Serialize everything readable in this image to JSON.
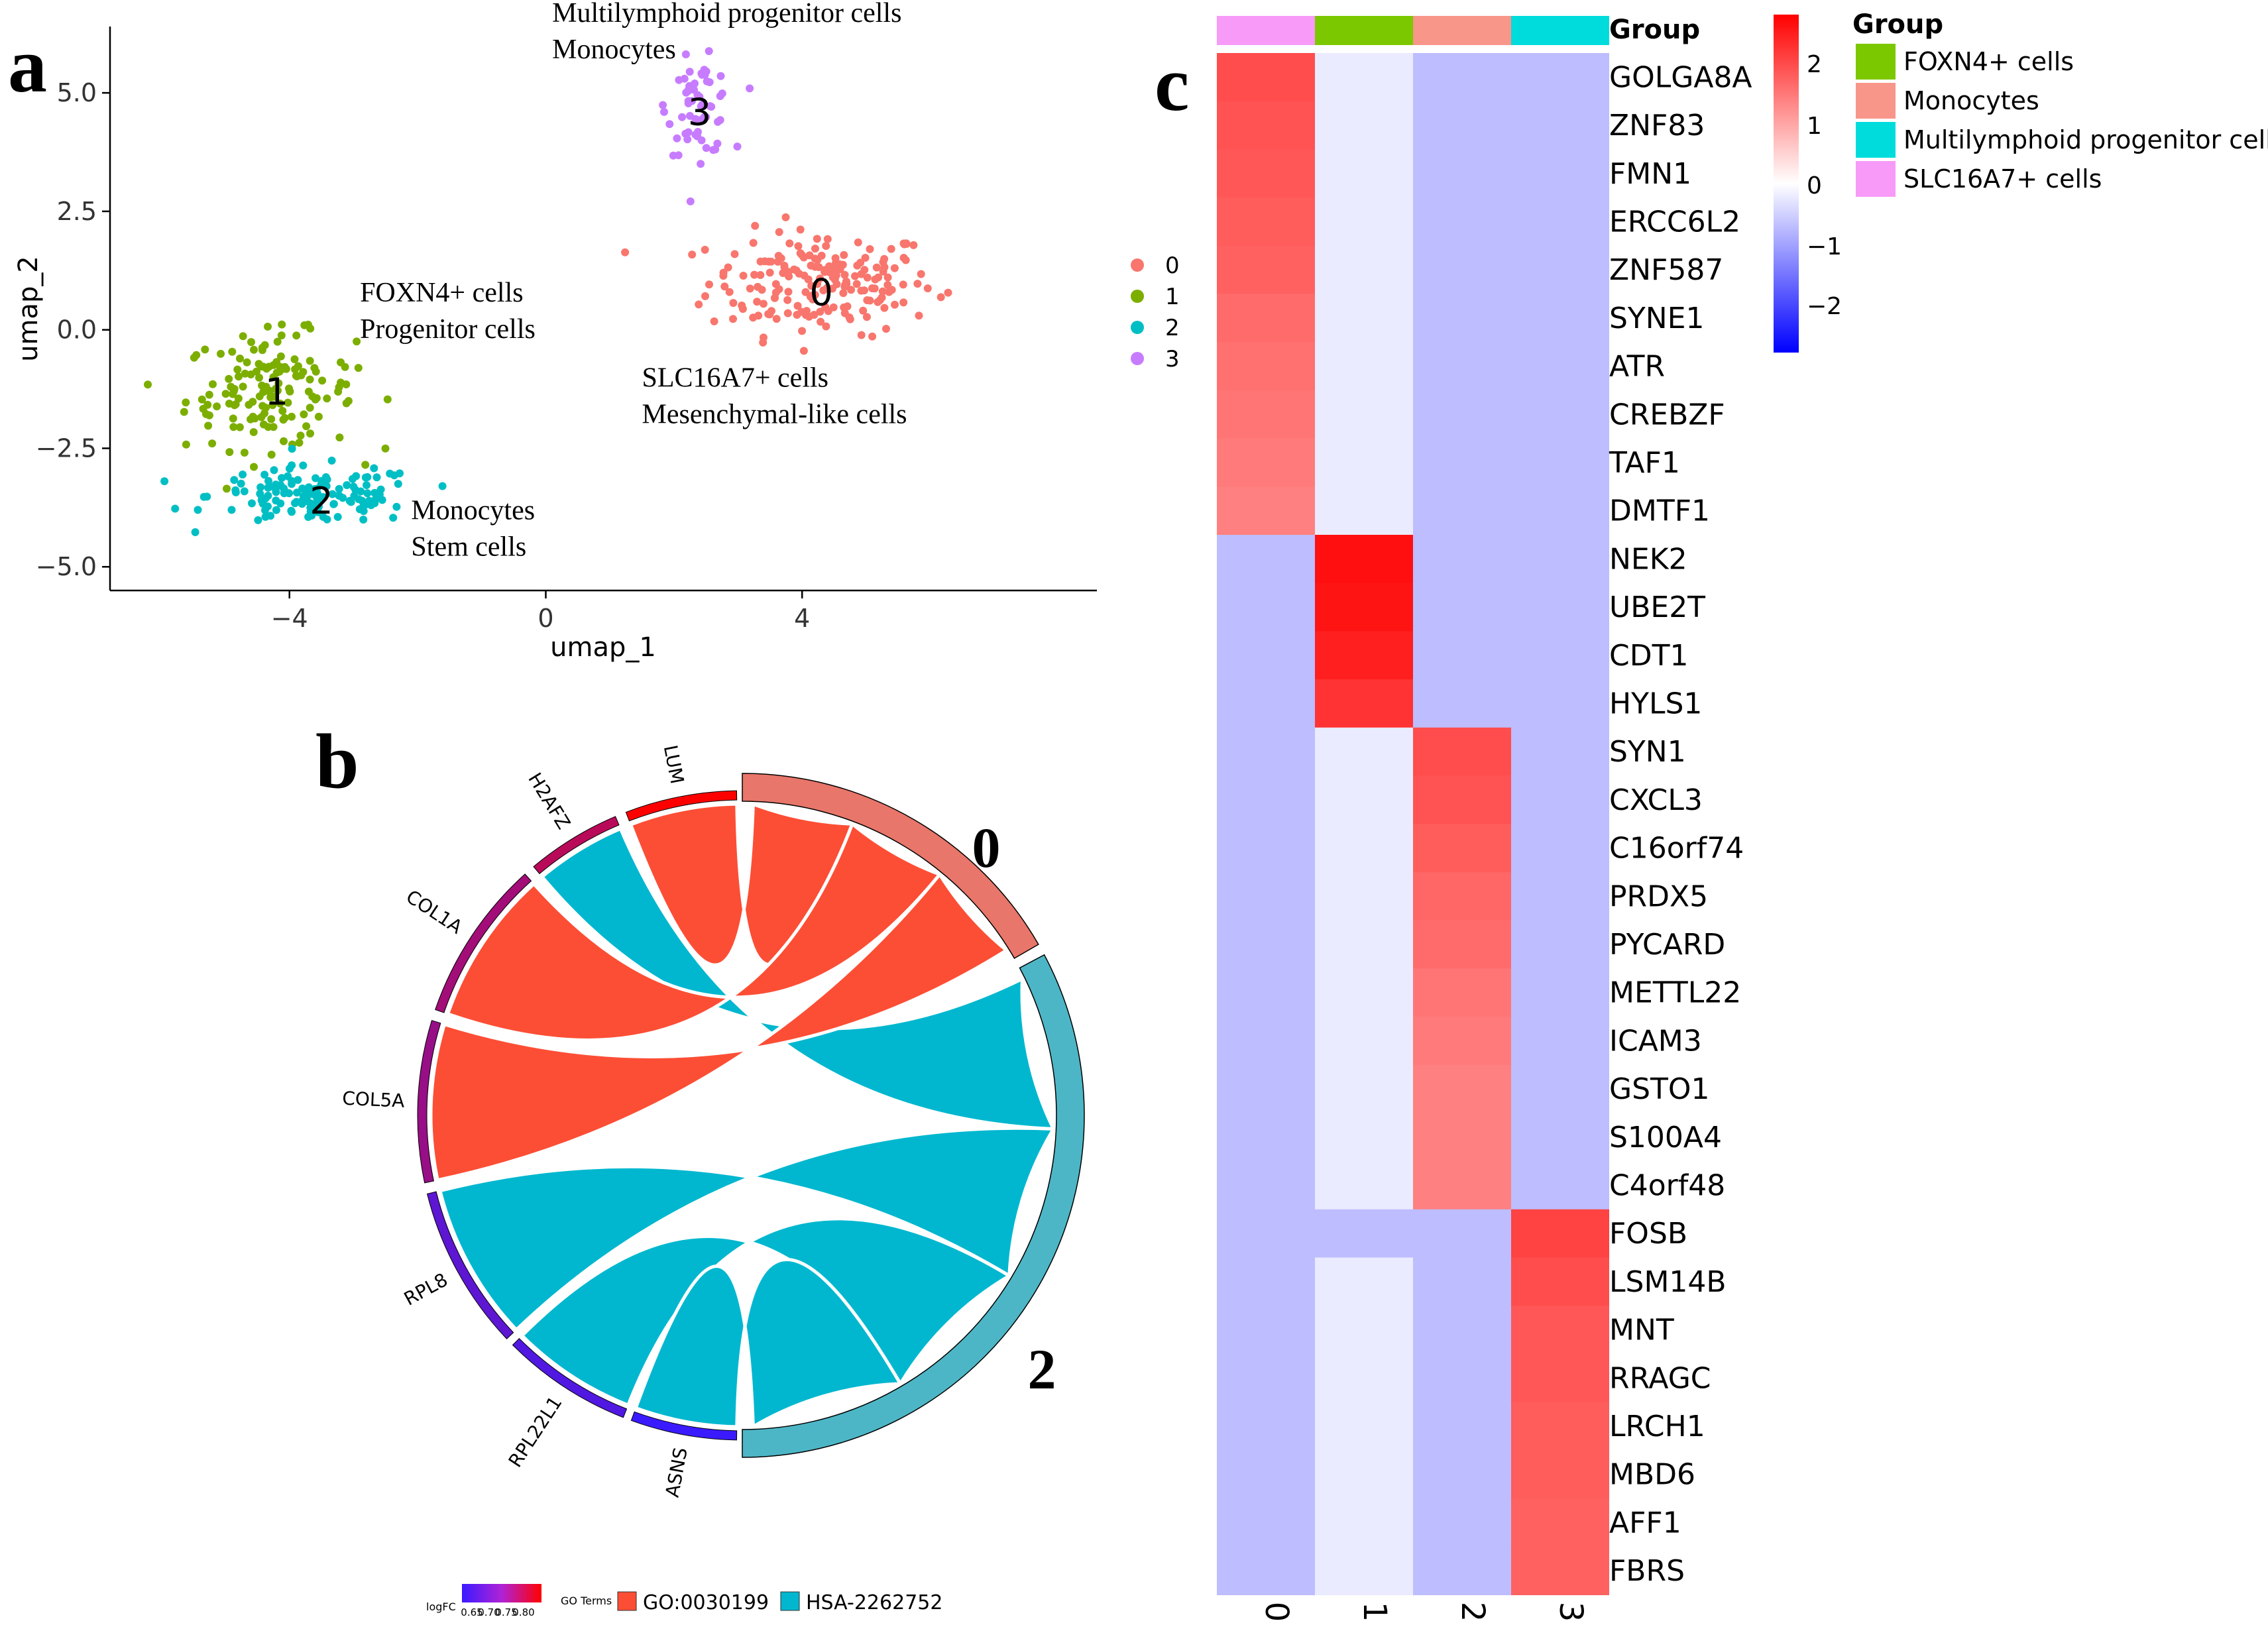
{
  "panel_labels": {
    "a": "a",
    "b": "b",
    "c": "c"
  },
  "chart_data": [
    {
      "type": "scatter",
      "panel": "a",
      "xlabel": "umap_1",
      "ylabel": "umap_2",
      "xlim": [
        -6.8,
        8.6
      ],
      "ylim": [
        -5.5,
        6.4
      ],
      "xticks": [
        -4,
        0,
        4
      ],
      "yticks": [
        -5.0,
        -2.5,
        0.0,
        2.5,
        5.0
      ],
      "legend": {
        "labels": [
          "0",
          "1",
          "2",
          "3"
        ],
        "colors": [
          "#F8766D",
          "#7CAE00",
          "#00BFC4",
          "#C77CFF"
        ],
        "position": "right"
      },
      "clusters": [
        {
          "id": "0",
          "color": "#F8766D",
          "center": [
            4.3,
            1.0
          ],
          "spread": [
            1.6,
            1.0
          ],
          "n": 190
        },
        {
          "id": "1",
          "color": "#7CAE00",
          "center": [
            -4.3,
            -1.3
          ],
          "spread": [
            1.2,
            1.1
          ],
          "n": 150
        },
        {
          "id": "2",
          "color": "#00BFC4",
          "center": [
            -3.6,
            -3.5
          ],
          "spread": [
            1.5,
            0.55
          ],
          "n": 140
        },
        {
          "id": "3",
          "color": "#C77CFF",
          "center": [
            2.4,
            4.7
          ],
          "spread": [
            0.45,
            0.9
          ],
          "n": 60
        }
      ],
      "cluster_labels": [
        {
          "text": "0",
          "x": 4.3,
          "y": 0.8
        },
        {
          "text": "1",
          "x": -4.2,
          "y": -1.3
        },
        {
          "text": "2",
          "x": -3.5,
          "y": -3.6
        },
        {
          "text": "3",
          "x": 2.4,
          "y": 4.6
        }
      ],
      "annotations": [
        {
          "lines": [
            "Multilymphoid progenitor cells",
            "Monocytes"
          ],
          "x": 0.1,
          "y": 6.5
        },
        {
          "lines": [
            "FOXN4+ cells",
            "Progenitor cells"
          ],
          "x": -2.9,
          "y": 0.6
        },
        {
          "lines": [
            "SLC16A7+ cells",
            "Mesenchymal-like cells"
          ],
          "x": 1.5,
          "y": -1.2
        },
        {
          "lines": [
            "Monocytes",
            "Stem cells"
          ],
          "x": -2.1,
          "y": -4.0
        }
      ]
    },
    {
      "type": "chord",
      "panel": "b",
      "genes": [
        "LUM",
        "H2AFZ",
        "COL1A",
        "COL5A",
        "RPL8",
        "RPL22L1",
        "ASNS"
      ],
      "gene_logfc": [
        0.8,
        0.74,
        0.72,
        0.71,
        0.66,
        0.65,
        0.63
      ],
      "groups": [
        {
          "label": "0",
          "color": "#E8766A"
        },
        {
          "label": "2",
          "color": "#4DB6C6"
        }
      ],
      "go_terms": [
        {
          "label": "GO:0030199",
          "color": "#FC4E35"
        },
        {
          "label": "HSA-2262752",
          "color": "#00B7CF"
        }
      ],
      "links": [
        {
          "gene": "LUM",
          "group": "0",
          "term": "GO:0030199"
        },
        {
          "gene": "H2AFZ",
          "group": "2",
          "term": "HSA-2262752"
        },
        {
          "gene": "COL1A",
          "group": "0",
          "term": "GO:0030199"
        },
        {
          "gene": "COL5A",
          "group": "0",
          "term": "GO:0030199"
        },
        {
          "gene": "RPL8",
          "group": "2",
          "term": "HSA-2262752"
        },
        {
          "gene": "RPL22L1",
          "group": "2",
          "term": "HSA-2262752"
        },
        {
          "gene": "ASNS",
          "group": "2",
          "term": "HSA-2262752"
        }
      ],
      "legend": {
        "logfc_title": "logFC",
        "logfc_ticks": [
          "0.65",
          "0.70",
          "0.75",
          "0.80"
        ],
        "go_title": "GO Terms"
      }
    },
    {
      "type": "heatmap",
      "panel": "c",
      "columns": [
        "0",
        "1",
        "2",
        "3"
      ],
      "column_group_colors": [
        "#F79AF8",
        "#7CC800",
        "#F8968A",
        "#00DCDC"
      ],
      "annotation_title": "Group",
      "rows": [
        "GOLGA8A",
        "ZNF83",
        "FMN1",
        "ERCC6L2",
        "ZNF587",
        "SYNE1",
        "ATR",
        "CREBZF",
        "TAF1",
        "DMTF1",
        "NEK2",
        "UBE2T",
        "CDT1",
        "HYLS1",
        "SYN1",
        "CXCL3",
        "C16orf74",
        "PRDX5",
        "PYCARD",
        "METTL22",
        "ICAM3",
        "GSTO1",
        "S100A4",
        "C4orf48",
        "FOSB",
        "LSM14B",
        "MNT",
        "RRAGC",
        "LRCH1",
        "MBD6",
        "AFF1",
        "FBRS"
      ],
      "values": [
        [
          1.75,
          -0.2,
          -0.65,
          -0.65
        ],
        [
          1.7,
          -0.2,
          -0.65,
          -0.65
        ],
        [
          1.65,
          -0.2,
          -0.65,
          -0.65
        ],
        [
          1.6,
          -0.2,
          -0.65,
          -0.65
        ],
        [
          1.55,
          -0.2,
          -0.65,
          -0.65
        ],
        [
          1.45,
          -0.2,
          -0.65,
          -0.65
        ],
        [
          1.4,
          -0.2,
          -0.65,
          -0.65
        ],
        [
          1.35,
          -0.2,
          -0.65,
          -0.65
        ],
        [
          1.3,
          -0.2,
          -0.65,
          -0.65
        ],
        [
          1.25,
          -0.2,
          -0.65,
          -0.65
        ],
        [
          -0.65,
          2.35,
          -0.65,
          -0.65
        ],
        [
          -0.65,
          2.3,
          -0.65,
          -0.65
        ],
        [
          -0.65,
          2.2,
          -0.65,
          -0.65
        ],
        [
          -0.65,
          2.0,
          -0.65,
          -0.65
        ],
        [
          -0.65,
          -0.2,
          1.75,
          -0.65
        ],
        [
          -0.65,
          -0.2,
          1.7,
          -0.65
        ],
        [
          -0.65,
          -0.2,
          1.6,
          -0.65
        ],
        [
          -0.65,
          -0.2,
          1.5,
          -0.65
        ],
        [
          -0.65,
          -0.2,
          1.45,
          -0.65
        ],
        [
          -0.65,
          -0.2,
          1.35,
          -0.65
        ],
        [
          -0.65,
          -0.2,
          1.3,
          -0.65
        ],
        [
          -0.65,
          -0.2,
          1.25,
          -0.65
        ],
        [
          -0.65,
          -0.2,
          1.25,
          -0.65
        ],
        [
          -0.65,
          -0.2,
          1.25,
          -0.65
        ],
        [
          -0.65,
          -0.65,
          -0.65,
          1.85
        ],
        [
          -0.65,
          -0.2,
          -0.65,
          1.75
        ],
        [
          -0.65,
          -0.2,
          -0.65,
          1.65
        ],
        [
          -0.65,
          -0.2,
          -0.65,
          1.65
        ],
        [
          -0.65,
          -0.2,
          -0.65,
          1.6
        ],
        [
          -0.65,
          -0.2,
          -0.65,
          1.6
        ],
        [
          -0.65,
          -0.2,
          -0.65,
          1.55
        ],
        [
          -0.65,
          -0.2,
          -0.65,
          1.55
        ]
      ],
      "color_scale": {
        "min": -2.5,
        "max": 2.5,
        "low": "#0000FF",
        "mid": "#FFFFFF",
        "high": "#FF0000",
        "ticks": [
          "2",
          "1",
          "0",
          "−1",
          "−2"
        ]
      },
      "group_legend": {
        "title": "Group",
        "items": [
          {
            "label": "FOXN4+ cells",
            "color": "#7CC800"
          },
          {
            "label": "Monocytes",
            "color": "#F8968A"
          },
          {
            "label": "Multilymphoid progenitor cells",
            "color": "#00DCDC"
          },
          {
            "label": "SLC16A7+ cells",
            "color": "#F79AF8"
          }
        ]
      }
    }
  ]
}
